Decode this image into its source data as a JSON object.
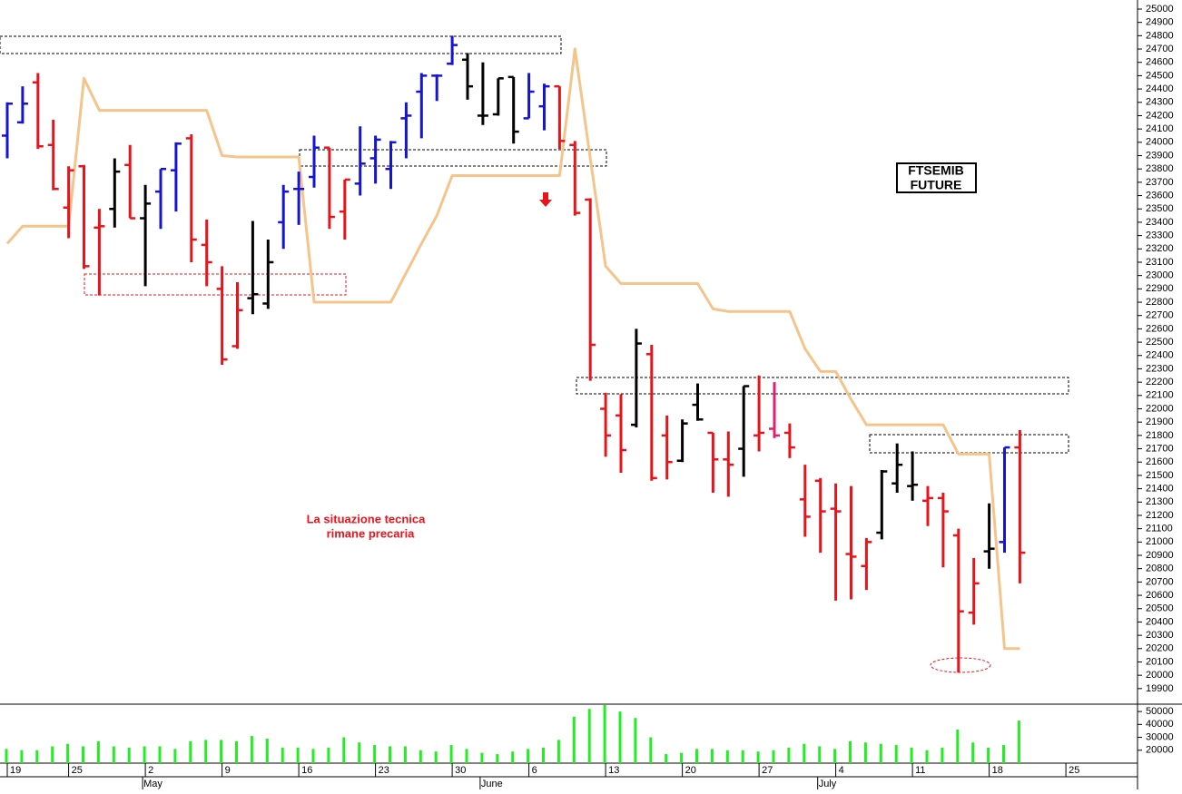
{
  "chart_data": [
    {
      "type": "ohlc",
      "categories": [
        "19",
        null,
        null,
        null,
        "25",
        null,
        null,
        null,
        null,
        "2",
        null,
        null,
        null,
        null,
        "9",
        null,
        null,
        null,
        null,
        "16",
        null,
        null,
        null,
        null,
        "23",
        null,
        null,
        null,
        null,
        "30",
        null,
        null,
        null,
        null,
        "6",
        null,
        null,
        null,
        null,
        "13",
        null,
        null,
        null,
        null,
        "20",
        null,
        null,
        null,
        null,
        "27",
        null,
        null,
        null,
        null,
        "4",
        null,
        null,
        null,
        null,
        "11",
        null,
        null,
        null,
        null,
        "18",
        null,
        null,
        null,
        null,
        "25"
      ],
      "months": [
        null,
        null,
        null,
        null,
        null,
        null,
        null,
        null,
        null,
        "May",
        null,
        null,
        null,
        null,
        null,
        null,
        null,
        null,
        null,
        null,
        null,
        null,
        null,
        null,
        null,
        null,
        null,
        null,
        null,
        null,
        null,
        "June",
        null,
        null,
        null,
        null,
        null,
        null,
        null,
        null,
        null,
        null,
        null,
        null,
        null,
        null,
        null,
        null,
        null,
        null,
        null,
        null,
        null,
        "July",
        null,
        null,
        null,
        null,
        null,
        null,
        null,
        null,
        null,
        null,
        null,
        null,
        null,
        null,
        null,
        null
      ],
      "open": [
        24050,
        24150,
        24450,
        23980,
        23510,
        23820,
        23360,
        23500,
        23830,
        23430,
        23630,
        23790,
        24030,
        23230,
        22900,
        22470,
        22830,
        22790,
        23400,
        23650,
        23740,
        23960,
        23480,
        23690,
        23880,
        23800,
        24180,
        24380,
        24500,
        24590,
        24620,
        24200,
        24210,
        24490,
        24180,
        24270,
        24420,
        23980,
        23570,
        22000,
        21950,
        21880,
        22410,
        21800,
        21610,
        22030,
        21820,
        21620,
        21700,
        21800,
        21850,
        21820,
        21320,
        21460,
        21250,
        20910,
        20820,
        21070,
        21440,
        21420,
        21310,
        21330,
        21050,
        20470,
        20930,
        21000,
        21710,
        null,
        null,
        null
      ],
      "high": [
        24300,
        24420,
        24520,
        24170,
        23820,
        23830,
        23500,
        23880,
        23980,
        23680,
        23800,
        24000,
        24060,
        23420,
        23070,
        22950,
        23410,
        23270,
        23680,
        23780,
        24050,
        23960,
        23720,
        24120,
        24050,
        24010,
        24300,
        24520,
        24510,
        24800,
        24670,
        24600,
        24480,
        24490,
        24520,
        24440,
        24420,
        24010,
        23580,
        22120,
        22110,
        22600,
        22480,
        21950,
        21920,
        22190,
        21820,
        21830,
        22170,
        22250,
        22200,
        21890,
        21580,
        21480,
        21440,
        21420,
        21030,
        21540,
        21740,
        21680,
        21420,
        21370,
        21100,
        20880,
        21290,
        21710,
        21840,
        null,
        null,
        null
      ],
      "low": [
        23880,
        24140,
        23950,
        23640,
        23280,
        23050,
        22850,
        23360,
        23430,
        22920,
        23350,
        23480,
        23100,
        22920,
        22330,
        22450,
        22710,
        22750,
        23200,
        23380,
        23660,
        23350,
        23270,
        23600,
        23690,
        23650,
        23880,
        24030,
        24310,
        24580,
        24320,
        24130,
        24200,
        23990,
        24180,
        24090,
        23950,
        23450,
        22210,
        21640,
        21520,
        21860,
        21460,
        21470,
        21600,
        21910,
        21370,
        21340,
        21490,
        21680,
        21780,
        21630,
        21040,
        20920,
        20560,
        20570,
        20640,
        21020,
        21370,
        21310,
        21120,
        20810,
        20020,
        20380,
        20800,
        20920,
        20690,
        null,
        null,
        null
      ],
      "close": [
        24290,
        24290,
        23970,
        23650,
        23790,
        23070,
        23370,
        23780,
        23430,
        23540,
        23800,
        23990,
        23270,
        23100,
        22370,
        22740,
        22860,
        23100,
        23630,
        23650,
        23960,
        23440,
        23720,
        23840,
        24020,
        24000,
        24200,
        24500,
        24500,
        24730,
        24420,
        24200,
        24480,
        24080,
        24380,
        24420,
        24010,
        23470,
        22480,
        21800,
        21690,
        22490,
        21480,
        21600,
        21890,
        21920,
        21620,
        21580,
        22170,
        21820,
        21800,
        21710,
        21190,
        21230,
        21230,
        20890,
        21000,
        21530,
        21580,
        21430,
        21330,
        21230,
        20480,
        20690,
        20950,
        21710,
        20920,
        null,
        null,
        null
      ],
      "colors": [
        "#1414d2",
        "#1414d2",
        "#e8141c",
        "#e8141c",
        "#e8141c",
        "#e8141c",
        "#e8141c",
        "#000000",
        "#e8141c",
        "#000000",
        "#1414d2",
        "#1414d2",
        "#e8141c",
        "#e8141c",
        "#e8141c",
        "#e8141c",
        "#000000",
        "#000000",
        "#1414d2",
        "#1414d2",
        "#1414d2",
        "#e8141c",
        "#e8141c",
        "#1414d2",
        "#1414d2",
        "#1414d2",
        "#1414d2",
        "#1414d2",
        "#1414d2",
        "#1414d2",
        "#000000",
        "#000000",
        "#000000",
        "#000000",
        "#1414d2",
        "#1414d2",
        "#e8141c",
        "#e8141c",
        "#e8141c",
        "#e8141c",
        "#e8141c",
        "#000000",
        "#e8141c",
        "#e8141c",
        "#000000",
        "#000000",
        "#e8141c",
        "#e8141c",
        "#000000",
        "#e8141c",
        "#e0206a",
        "#e8141c",
        "#e8141c",
        "#e8141c",
        "#e8141c",
        "#e8141c",
        "#e8141c",
        "#000000",
        "#000000",
        "#000000",
        "#e8141c",
        "#e8141c",
        "#e8141c",
        "#e8141c",
        "#000000",
        "#1414d2",
        "#e8141c",
        null,
        null,
        null
      ],
      "stop_line": {
        "color": "#f5c48a",
        "values": [
          23240,
          23370,
          23370,
          23370,
          23370,
          24480,
          24240,
          24240,
          24240,
          24240,
          24240,
          24240,
          24240,
          24240,
          23900,
          23890,
          23890,
          23890,
          23890,
          23890,
          22800,
          22800,
          22800,
          22800,
          22800,
          22800,
          23020,
          23240,
          23450,
          23750,
          23750,
          23750,
          23750,
          23750,
          23750,
          23750,
          23750,
          24700,
          23880,
          23070,
          22940,
          22940,
          22940,
          22940,
          22940,
          22940,
          22750,
          22730,
          22730,
          22730,
          22730,
          22730,
          22450,
          22280,
          22280,
          22070,
          21880,
          21880,
          21880,
          21880,
          21880,
          21880,
          21660,
          21660,
          21660,
          20200,
          20200,
          null,
          null,
          null
        ]
      },
      "ylim": [
        19790,
        25068
      ],
      "yticks": [
        19900,
        20000,
        20100,
        20200,
        20300,
        20400,
        20500,
        20600,
        20700,
        20800,
        20900,
        21000,
        21100,
        21200,
        21300,
        21400,
        21500,
        21600,
        21700,
        21800,
        21900,
        22000,
        22100,
        22200,
        22300,
        22400,
        22500,
        22600,
        22700,
        22800,
        22900,
        23000,
        23100,
        23200,
        23300,
        23400,
        23500,
        23600,
        23700,
        23800,
        23900,
        24000,
        24100,
        24200,
        24300,
        24400,
        24500,
        24600,
        24700,
        24800,
        24900,
        25000
      ],
      "label": [
        "FTSEMIB",
        "FUTURE"
      ],
      "annotation": [
        "La situazione tecnica",
        "rimane precaria"
      ]
    },
    {
      "type": "bar",
      "color": "#22ee22",
      "values": [
        21000,
        20000,
        20000,
        23000,
        25000,
        23000,
        27000,
        23000,
        22000,
        23000,
        23000,
        21000,
        27000,
        28000,
        28000,
        27000,
        31000,
        29000,
        22000,
        22000,
        21000,
        22000,
        30000,
        26000,
        24000,
        23000,
        23000,
        20000,
        19000,
        24000,
        21000,
        18000,
        17000,
        19000,
        21000,
        22000,
        28000,
        46000,
        52000,
        55000,
        50000,
        45000,
        30000,
        17000,
        18000,
        21000,
        21000,
        20000,
        20000,
        19000,
        20000,
        22000,
        25000,
        23000,
        21000,
        27000,
        26000,
        25000,
        24000,
        22000,
        20000,
        22000,
        36000,
        26000,
        22000,
        24000,
        43000,
        null,
        null,
        null
      ],
      "ylim": [
        10000,
        55000
      ],
      "yticks": [
        20000,
        30000,
        40000,
        50000
      ]
    }
  ]
}
